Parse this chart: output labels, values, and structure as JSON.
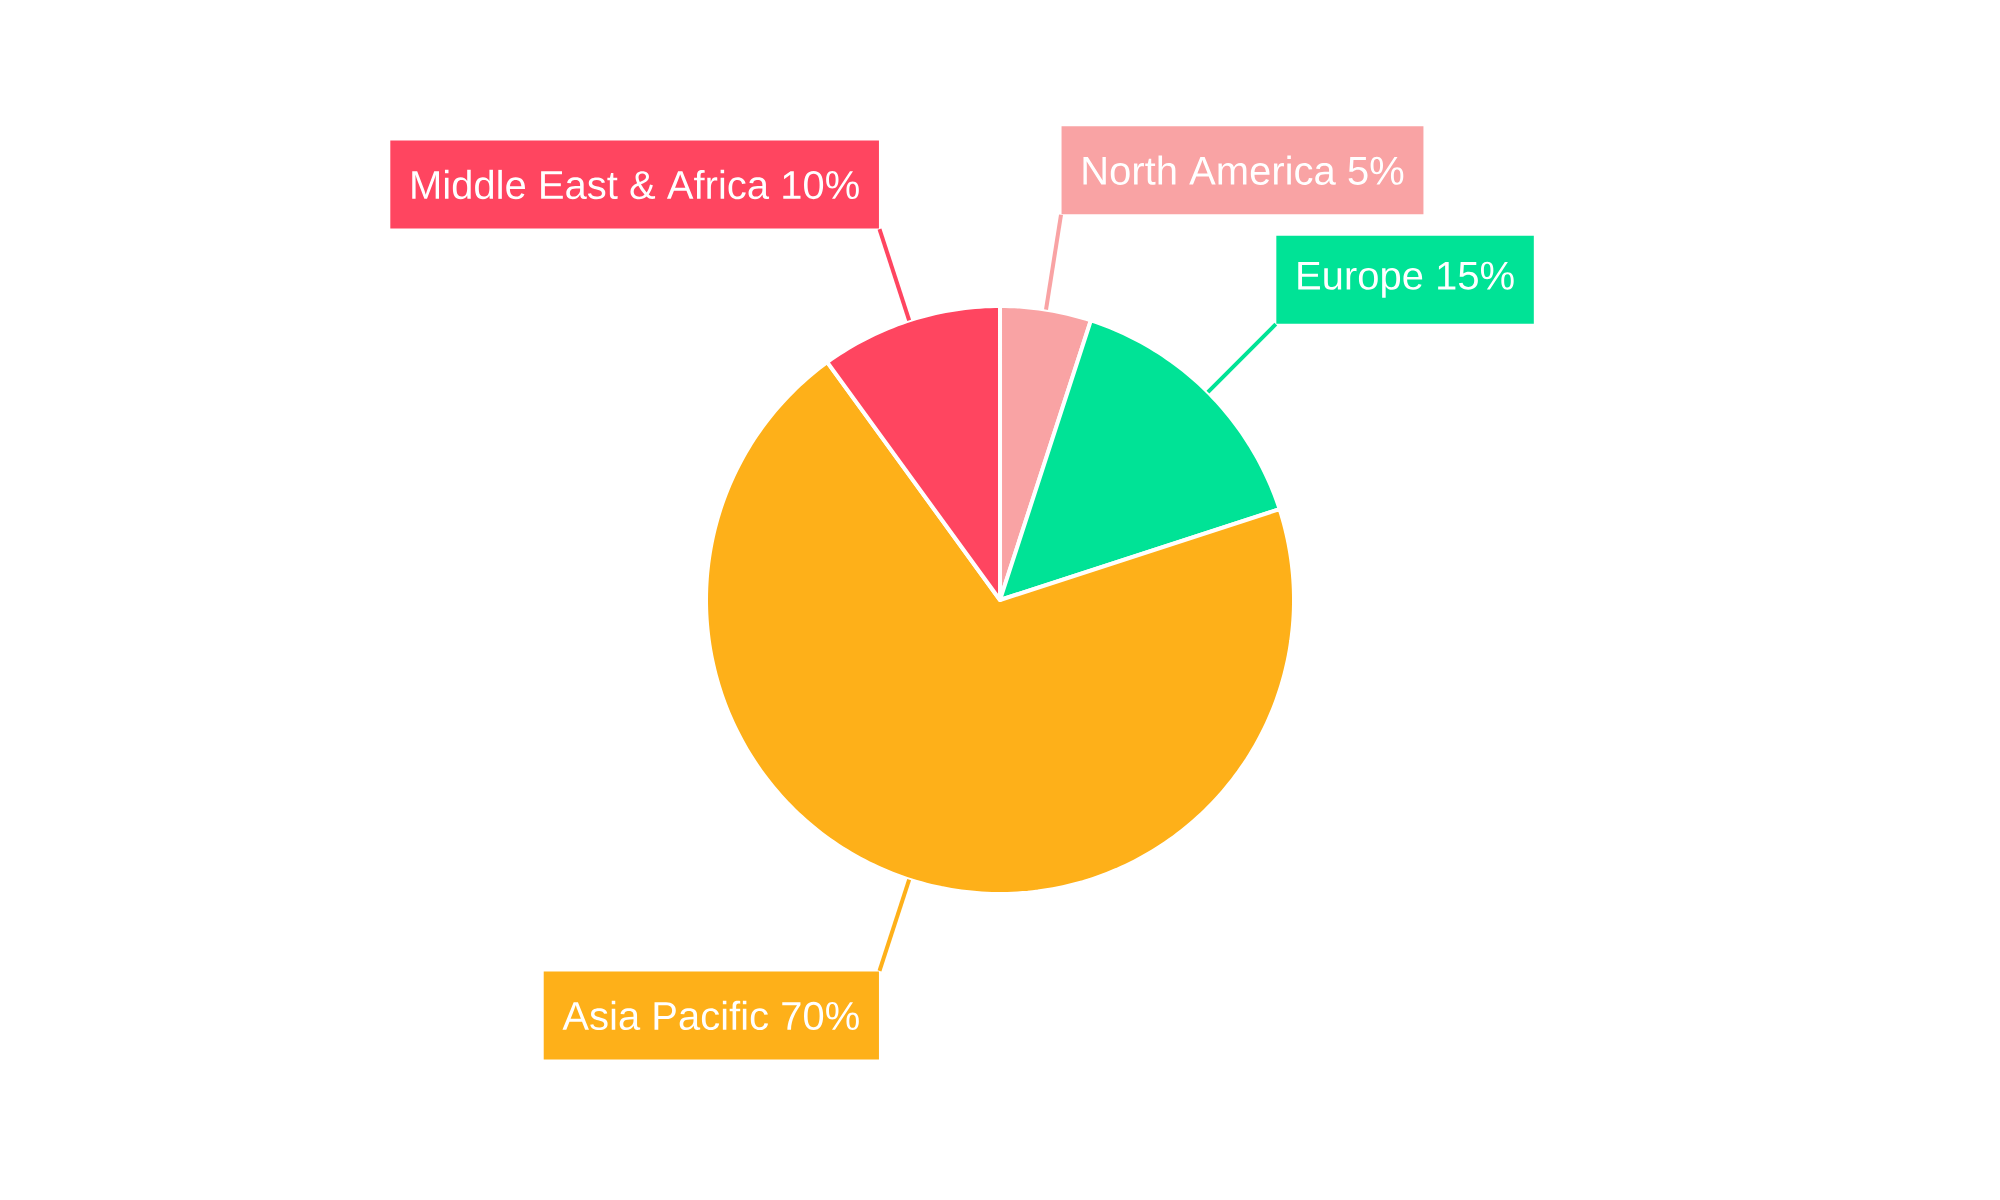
{
  "chart_data": {
    "type": "pie",
    "categories": [
      "North America",
      "Europe",
      "Asia Pacific",
      "Middle East & Africa"
    ],
    "values": [
      5,
      15,
      70,
      10
    ],
    "value_labels": [
      "5%",
      "15%",
      "70%",
      "10%"
    ],
    "colors": [
      "#f9a3a4",
      "#00e396",
      "#feb019",
      "#ff4560"
    ]
  }
}
